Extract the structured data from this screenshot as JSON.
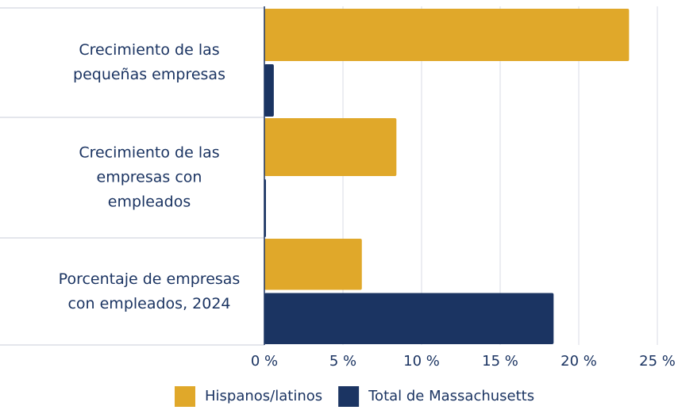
{
  "chart_data": {
    "type": "hbar",
    "categories": [
      "Crecimiento de las pequeñas empresas",
      "Crecimiento de las empresas con empleados",
      "Porcentaje de empresas con empleados, 2024"
    ],
    "series": [
      {
        "name": "Hispanos/latinos",
        "color": "#e0a82a",
        "values": [
          23.2,
          8.4,
          6.2
        ]
      },
      {
        "name": "Total de Massachusetts",
        "color": "#1b3462",
        "values": [
          0.6,
          0.1,
          18.4
        ]
      }
    ],
    "xlim": [
      0,
      25
    ],
    "xticks": [
      {
        "value": 0,
        "label": "0 %"
      },
      {
        "value": 5,
        "label": "5 %"
      },
      {
        "value": 10,
        "label": "10 %"
      },
      {
        "value": 15,
        "label": "15 %"
      },
      {
        "value": 20,
        "label": "20 %"
      },
      {
        "value": 25,
        "label": "25 %"
      }
    ],
    "grid": true,
    "legend": "bottom"
  }
}
